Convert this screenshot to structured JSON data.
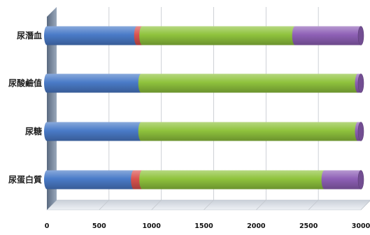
{
  "chart_data": {
    "type": "bar",
    "orientation": "horizontal",
    "stacked": true,
    "style": "3d-cylinder",
    "categories": [
      "尿潛血",
      "尿酸鹼值",
      "尿糖",
      "尿蛋白質"
    ],
    "series": [
      {
        "color": "#4a7bc8",
        "values": [
          860,
          900,
          900,
          830
        ]
      },
      {
        "color": "#d9534f",
        "values": [
          50,
          0,
          0,
          80
        ]
      },
      {
        "color": "#8fc33d",
        "values": [
          1460,
          2070,
          2070,
          1740
        ]
      },
      {
        "color": "#8e60b6",
        "values": [
          630,
          30,
          30,
          350
        ]
      }
    ],
    "xlim": [
      0,
      3000
    ],
    "xticks": [
      "0",
      "500",
      "1000",
      "1500",
      "2000",
      "2500",
      "3000"
    ],
    "grid": true,
    "legend": "none"
  }
}
